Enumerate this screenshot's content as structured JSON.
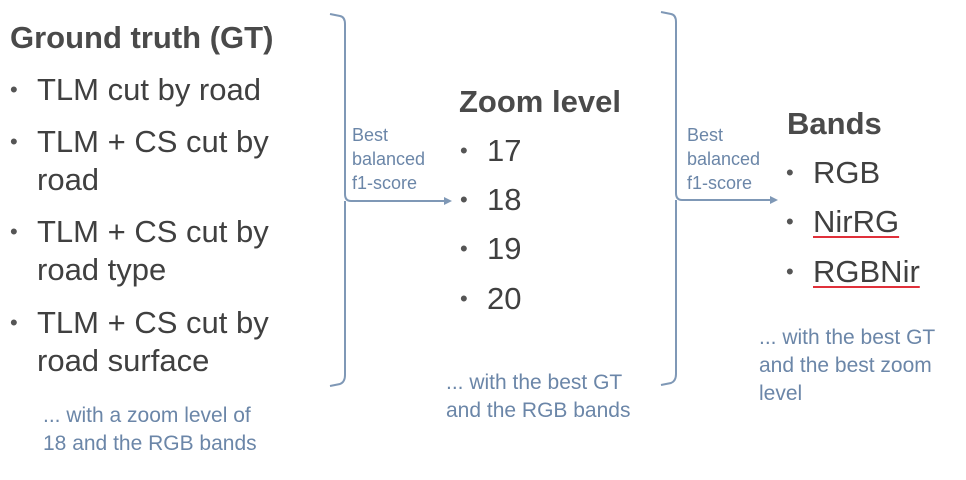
{
  "ground_truth": {
    "title": "Ground truth (GT)",
    "items": [
      {
        "lines": [
          "TLM cut by road"
        ]
      },
      {
        "lines": [
          "TLM + CS cut by",
          "road"
        ]
      },
      {
        "lines": [
          "TLM + CS cut by",
          "road type"
        ]
      },
      {
        "lines": [
          "TLM + CS cut by",
          "road surface"
        ]
      }
    ],
    "note": [
      "... with a zoom level of",
      "18 and the RGB bands"
    ]
  },
  "zoom_level": {
    "title": "Zoom level",
    "items": [
      "17",
      "18",
      "19",
      "20"
    ],
    "note": [
      "... with the best GT",
      "and the RGB bands"
    ]
  },
  "bands": {
    "title": "Bands",
    "items": [
      "RGB",
      "NirRG",
      "RGBNir"
    ],
    "note": [
      "... with the best GT",
      "and the best zoom",
      "level"
    ]
  },
  "arrow_labels": {
    "first": [
      "Best",
      "balanced",
      "f1-score"
    ],
    "second": [
      "Best",
      "balanced",
      "f1-score"
    ]
  },
  "bullet_glyph": "•",
  "colors": {
    "connector": "#7f98b6",
    "note_text": "#6b86a8",
    "spellcheck": "#e0303a"
  }
}
